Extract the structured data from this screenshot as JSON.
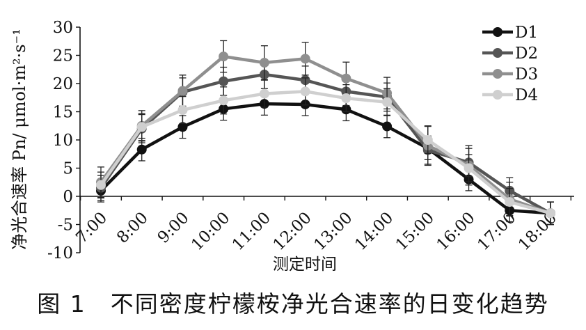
{
  "caption": "图 1　不同密度柠檬桉净光合速率的日变化趋势",
  "chart_data": {
    "type": "line",
    "title": "",
    "xlabel": "测定时间",
    "ylabel": "净光合速率 Pn/ μmol·m²·s⁻¹",
    "categories": [
      "7:00",
      "8:00",
      "9:00",
      "10:00",
      "11:00",
      "12:00",
      "13:00",
      "14:00",
      "15:00",
      "16:00",
      "17:00",
      "18:00"
    ],
    "ylim": [
      -10,
      30
    ],
    "yticks": [
      -10,
      -5,
      0,
      5,
      10,
      15,
      20,
      25,
      30
    ],
    "grid": false,
    "legend_position": "top-right",
    "series": [
      {
        "name": "D1",
        "color": "#111111",
        "values": [
          1.0,
          8.3,
          12.3,
          15.5,
          16.4,
          16.3,
          15.4,
          12.4,
          8.5,
          3.0,
          -2.5,
          -3.0
        ],
        "errors": [
          2.0,
          2.0,
          2.0,
          2.0,
          2.0,
          2.0,
          2.0,
          2.0,
          2.0,
          2.0,
          2.0,
          2.0
        ]
      },
      {
        "name": "D2",
        "color": "#555555",
        "values": [
          1.5,
          12.0,
          18.5,
          20.4,
          21.6,
          20.6,
          18.6,
          17.6,
          8.2,
          6.0,
          1.0,
          -3.0
        ],
        "errors": [
          2.2,
          2.5,
          2.5,
          2.5,
          2.5,
          2.5,
          2.5,
          2.5,
          2.5,
          2.5,
          2.3,
          2.0
        ]
      },
      {
        "name": "D3",
        "color": "#8f8f8f",
        "values": [
          2.5,
          12.5,
          18.7,
          24.8,
          23.7,
          24.4,
          20.9,
          18.3,
          9.0,
          5.5,
          -0.5,
          -3.0
        ],
        "errors": [
          2.7,
          2.7,
          2.8,
          2.8,
          3.0,
          2.9,
          2.9,
          2.8,
          3.5,
          3.5,
          3.0,
          2.0
        ]
      },
      {
        "name": "D4",
        "color": "#cfcfcf",
        "values": [
          2.0,
          12.3,
          15.3,
          17.0,
          18.2,
          18.6,
          17.4,
          16.7,
          10.0,
          5.0,
          -1.0,
          -3.0
        ],
        "errors": [
          2.3,
          2.4,
          2.4,
          2.4,
          2.4,
          2.4,
          2.4,
          2.4,
          2.4,
          2.4,
          2.4,
          2.0
        ]
      }
    ]
  }
}
